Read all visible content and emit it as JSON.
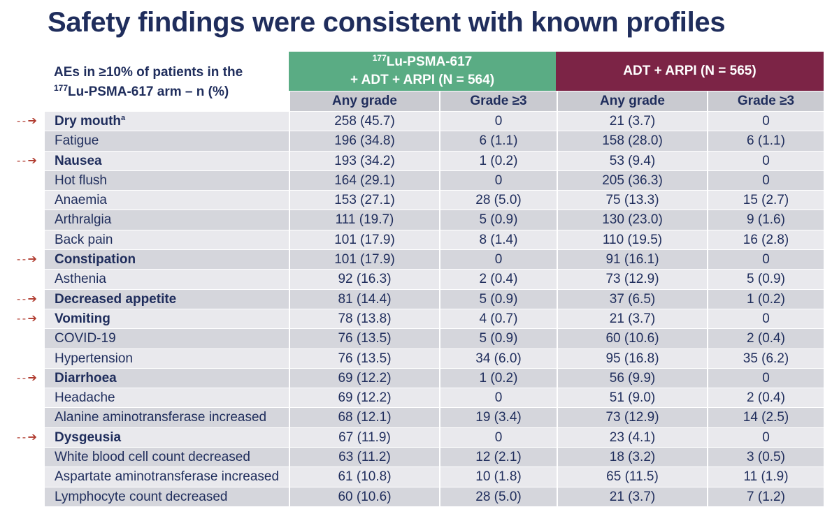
{
  "title": "Safety findings were consistent with known profiles",
  "description": {
    "line1": "AEs in ≥10% of patients in the",
    "sup": "177",
    "line2": "Lu-PSMA-617 arm – n (%)"
  },
  "groups": [
    {
      "sup": "177",
      "line1": "Lu-PSMA-617",
      "line2": "+ ADT + ARPI (N = 564)",
      "color": "#5aac84"
    },
    {
      "line1": "ADT + ARPI (N = 565)",
      "color": "#7c2446"
    }
  ],
  "subheaders": [
    "Any grade",
    "Grade ≥3",
    "Any grade",
    "Grade ≥3"
  ],
  "arrow_symbol": "- - ➔",
  "rows": [
    {
      "label": "Dry mouth",
      "footnote": "a",
      "highlight": true,
      "values": [
        "258 (45.7)",
        "0",
        "21 (3.7)",
        "0"
      ]
    },
    {
      "label": "Fatigue",
      "footnote": "",
      "highlight": false,
      "values": [
        "196 (34.8)",
        "6 (1.1)",
        "158 (28.0)",
        "6 (1.1)"
      ]
    },
    {
      "label": "Nausea",
      "footnote": "",
      "highlight": true,
      "values": [
        "193 (34.2)",
        "1 (0.2)",
        "53 (9.4)",
        "0"
      ]
    },
    {
      "label": "Hot flush",
      "footnote": "",
      "highlight": false,
      "values": [
        "164 (29.1)",
        "0",
        "205 (36.3)",
        "0"
      ]
    },
    {
      "label": "Anaemia",
      "footnote": "",
      "highlight": false,
      "values": [
        "153 (27.1)",
        "28 (5.0)",
        "75 (13.3)",
        "15 (2.7)"
      ]
    },
    {
      "label": "Arthralgia",
      "footnote": "",
      "highlight": false,
      "values": [
        "111 (19.7)",
        "5 (0.9)",
        "130 (23.0)",
        "9 (1.6)"
      ]
    },
    {
      "label": "Back pain",
      "footnote": "",
      "highlight": false,
      "values": [
        "101 (17.9)",
        "8 (1.4)",
        "110 (19.5)",
        "16 (2.8)"
      ]
    },
    {
      "label": "Constipation",
      "footnote": "",
      "highlight": true,
      "values": [
        "101 (17.9)",
        "0",
        "91 (16.1)",
        "0"
      ]
    },
    {
      "label": "Asthenia",
      "footnote": "",
      "highlight": false,
      "values": [
        "92 (16.3)",
        "2 (0.4)",
        "73 (12.9)",
        "5 (0.9)"
      ]
    },
    {
      "label": "Decreased appetite",
      "footnote": "",
      "highlight": true,
      "values": [
        "81 (14.4)",
        "5 (0.9)",
        "37 (6.5)",
        "1 (0.2)"
      ]
    },
    {
      "label": "Vomiting",
      "footnote": "",
      "highlight": true,
      "values": [
        "78 (13.8)",
        "4 (0.7)",
        "21 (3.7)",
        "0"
      ]
    },
    {
      "label": "COVID-19",
      "footnote": "",
      "highlight": false,
      "values": [
        "76 (13.5)",
        "5 (0.9)",
        "60 (10.6)",
        "2 (0.4)"
      ]
    },
    {
      "label": "Hypertension",
      "footnote": "",
      "highlight": false,
      "values": [
        "76 (13.5)",
        "34 (6.0)",
        "95 (16.8)",
        "35 (6.2)"
      ]
    },
    {
      "label": "Diarrhoea",
      "footnote": "",
      "highlight": true,
      "values": [
        "69 (12.2)",
        "1 (0.2)",
        "56 (9.9)",
        "0"
      ]
    },
    {
      "label": "Headache",
      "footnote": "",
      "highlight": false,
      "values": [
        "69 (12.2)",
        "0",
        "51 (9.0)",
        "2 (0.4)"
      ]
    },
    {
      "label": "Alanine aminotransferase increased",
      "footnote": "",
      "highlight": false,
      "values": [
        "68 (12.1)",
        "19 (3.4)",
        "73 (12.9)",
        "14 (2.5)"
      ]
    },
    {
      "label": "Dysgeusia",
      "footnote": "",
      "highlight": true,
      "values": [
        "67 (11.9)",
        "0",
        "23 (4.1)",
        "0"
      ]
    },
    {
      "label": "White blood cell count decreased",
      "footnote": "",
      "highlight": false,
      "values": [
        "63 (11.2)",
        "12 (2.1)",
        "18 (3.2)",
        "3 (0.5)"
      ]
    },
    {
      "label": "Aspartate aminotransferase increased",
      "footnote": "",
      "highlight": false,
      "values": [
        "61 (10.8)",
        "10 (1.8)",
        "65 (11.5)",
        "11 (1.9)"
      ]
    },
    {
      "label": "Lymphocyte count decreased",
      "footnote": "",
      "highlight": false,
      "values": [
        "60 (10.6)",
        "28 (5.0)",
        "21 (3.7)",
        "7 (1.2)"
      ]
    }
  ]
}
